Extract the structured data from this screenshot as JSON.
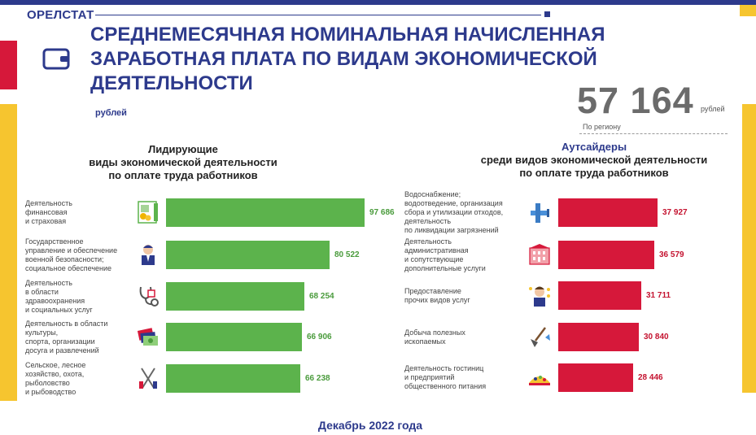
{
  "header": {
    "brand": "ОРЕЛСТАТ",
    "title": "СРЕДНЕМЕСЯЧНАЯ НОМИНАЛЬНАЯ НАЧИСЛЕННАЯ ЗАРАБОТНАЯ ПЛАТА ПО ВИДАМ ЭКОНОМИЧЕСКОЙ ДЕЯТЕЛЬНОСТИ",
    "unit": "рублей"
  },
  "summary": {
    "value": "57 164",
    "unit": "рублей",
    "caption": "По региону"
  },
  "footer": {
    "period": "Декабрь 2022 года"
  },
  "colors": {
    "leaders": "#5cb34c",
    "outsiders": "#d6183a",
    "brand": "#2d3a8c",
    "accent": "#f6c52f"
  },
  "chart_data": [
    {
      "type": "bar",
      "orientation": "horizontal",
      "title_lines": [
        "Лидирующие",
        "виды экономической деятельности",
        "по оплате труда работников"
      ],
      "categories": [
        "Деятельность\nфинансовая\nи страховая",
        "Государственное\nуправление и обеспечение\nвоенной безопасности;\nсоциальное обеспечение",
        "Деятельность\nв области\nздравоохранения\nи социальных услуг",
        "Деятельность в области\nкультуры,\nспорта, организации\nдосуга и развлечений",
        "Сельское, лесное\nхозяйство, охота,\nрыболовство\nи рыбоводство"
      ],
      "values": [
        97686,
        80522,
        68254,
        66906,
        66238
      ],
      "labels": [
        "97 686",
        "80 522",
        "68 254",
        "66 906",
        "66 238"
      ],
      "icons": [
        "finance-icon",
        "official-icon",
        "stethoscope-icon",
        "tickets-icon",
        "tools-icon"
      ],
      "color": "#5cb34c"
    },
    {
      "type": "bar",
      "orientation": "horizontal",
      "title_lines": [
        "Аутсайдеры",
        "среди видов экономической деятельности",
        "по оплате труда работников"
      ],
      "categories": [
        "Водоснабжение;\nводоотведение, организация\nсбора и утилизации отходов,\nдеятельность\nпо ликвидации загрязнений",
        "Деятельность\nадминистративная\nи сопутствующие\nдополнительные услуги",
        "Предоставление\nпрочих видов услуг",
        "Добыча полезных\nископаемых",
        "Деятельность гостиниц\nи предприятий\nобщественного питания"
      ],
      "values": [
        37927,
        36579,
        31711,
        30840,
        28446
      ],
      "labels": [
        "37 927",
        "36 579",
        "31 711",
        "30 840",
        "28 446"
      ],
      "icons": [
        "pipe-icon",
        "building-icon",
        "worker-icon",
        "shovel-icon",
        "food-icon"
      ],
      "color": "#d6183a"
    }
  ]
}
